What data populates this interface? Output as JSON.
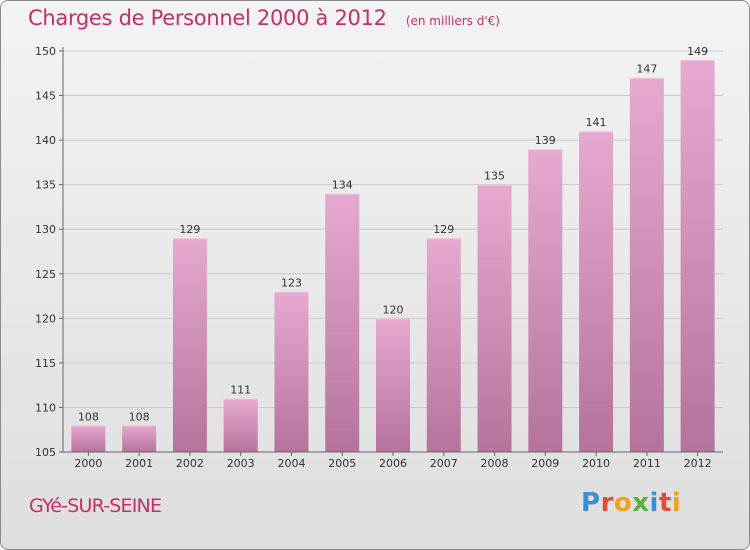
{
  "header": {
    "title": "Charges de Personnel 2000 à 2012",
    "subtitle": "(en milliers d'€)"
  },
  "footer": {
    "commune": "GYé-SUR-SEINE",
    "logo_text": "Proxiti"
  },
  "colors": {
    "title": "#c0306a",
    "bar_top": "#e7a9cf",
    "bar_bottom": "#b5739c",
    "logo": [
      "#3a8fd6",
      "#e34b3a",
      "#f2a21b",
      "#57b13d",
      "#3a8fd6",
      "#e34b3a",
      "#f2a21b"
    ]
  },
  "chart_data": {
    "type": "bar",
    "title": "Charges de Personnel 2000 à 2012",
    "subtitle": "(en milliers d'€)",
    "categories": [
      "2000",
      "2001",
      "2002",
      "2003",
      "2004",
      "2005",
      "2006",
      "2007",
      "2008",
      "2009",
      "2010",
      "2011",
      "2012"
    ],
    "values": [
      108,
      108,
      129,
      111,
      123,
      134,
      120,
      129,
      135,
      139,
      141,
      147,
      149
    ],
    "ylim": [
      105,
      150
    ],
    "yticks": [
      105,
      110,
      115,
      120,
      125,
      130,
      135,
      140,
      145,
      150
    ],
    "grid": true,
    "data_labels": true
  }
}
